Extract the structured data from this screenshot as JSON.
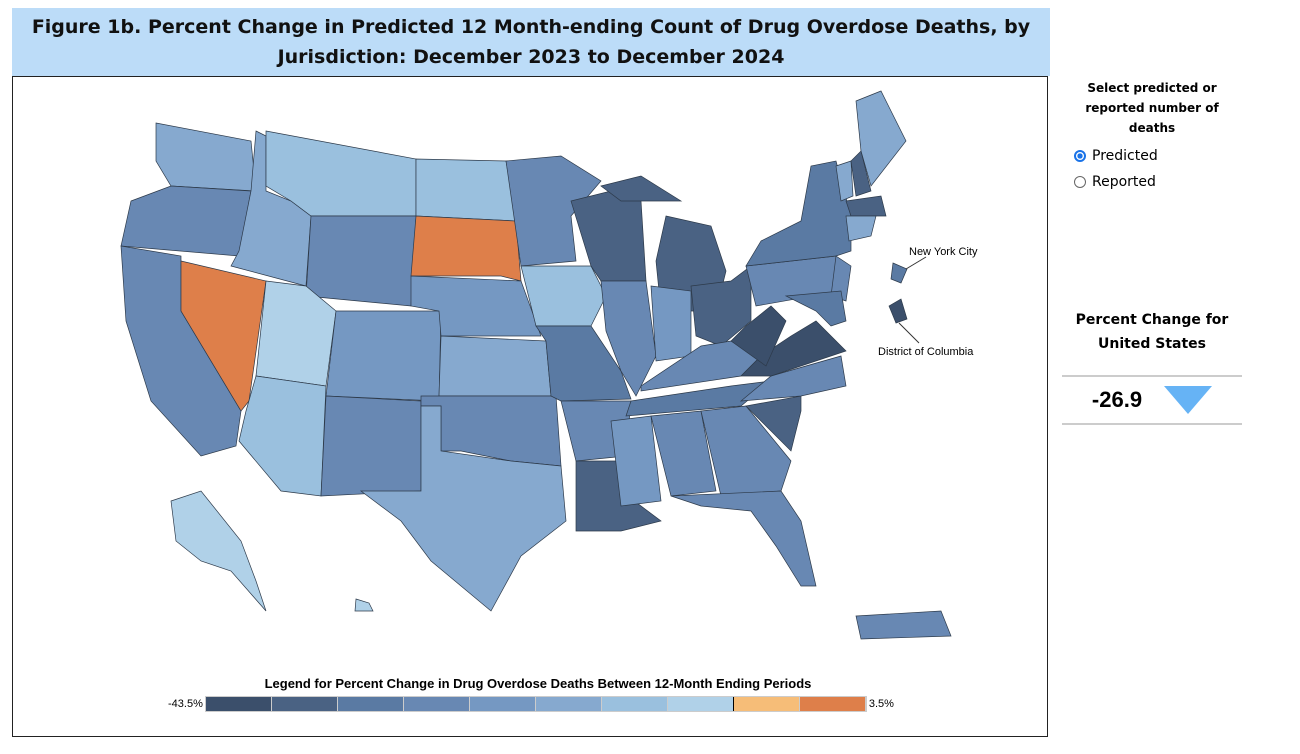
{
  "title": "Figure 1b. Percent Change in Predicted 12 Month-ending Count of Drug Overdose Deaths, by Jurisdiction: December 2023 to December 2024",
  "map": {
    "labels": {
      "nyc": "New York City",
      "dc": "District of Columbia"
    },
    "bins": {
      "WA": 5,
      "OR": 3,
      "CA": 3,
      "NV": 9,
      "ID": 5,
      "MT": 6,
      "WY": 3,
      "UT": 7,
      "AZ": 6,
      "CO": 4,
      "NM": 3,
      "ND": 6,
      "SD": 9,
      "NE": 4,
      "KS": 5,
      "OK": 3,
      "TX": 5,
      "MN": 3,
      "IA": 6,
      "MO": 2,
      "AR": 3,
      "LA": 1,
      "WI": 1,
      "IL": 3,
      "MI": 1,
      "MIU": 1,
      "IN": 4,
      "OH": 1,
      "KY": 3,
      "TN": 2,
      "MS": 4,
      "AL": 3,
      "GA": 3,
      "FL": 3,
      "SC": 1,
      "NC": 3,
      "VA": 0,
      "WV": 0,
      "PA": 3,
      "NY": 2,
      "NJ": 3,
      "MD": 2,
      "VT": 5,
      "NH": 1,
      "ME": 5,
      "MA": 1,
      "CT": 5,
      "AK": 7,
      "HI": 7,
      "PR": 3,
      "NYC": 2,
      "DC": 0
    }
  },
  "legend": {
    "title": "Legend for Percent Change in Drug Overdose Deaths Between 12-Month Ending Periods",
    "min_label": "-43.5%",
    "max_label": "3.5%",
    "colors": [
      "#3b4f6b",
      "#4a6283",
      "#5a7aa3",
      "#6888b3",
      "#7598c2",
      "#86a9cf",
      "#9ac0de",
      "#b0d1e8",
      "#f6bd78",
      "#de7f4a"
    ]
  },
  "side": {
    "select_title": "Select predicted or reported number of deaths",
    "options": [
      {
        "label": "Predicted",
        "selected": true
      },
      {
        "label": "Reported",
        "selected": false
      }
    ],
    "pc_title": "Percent Change for United States",
    "pc_value": "-26.9",
    "pc_direction": "down"
  }
}
